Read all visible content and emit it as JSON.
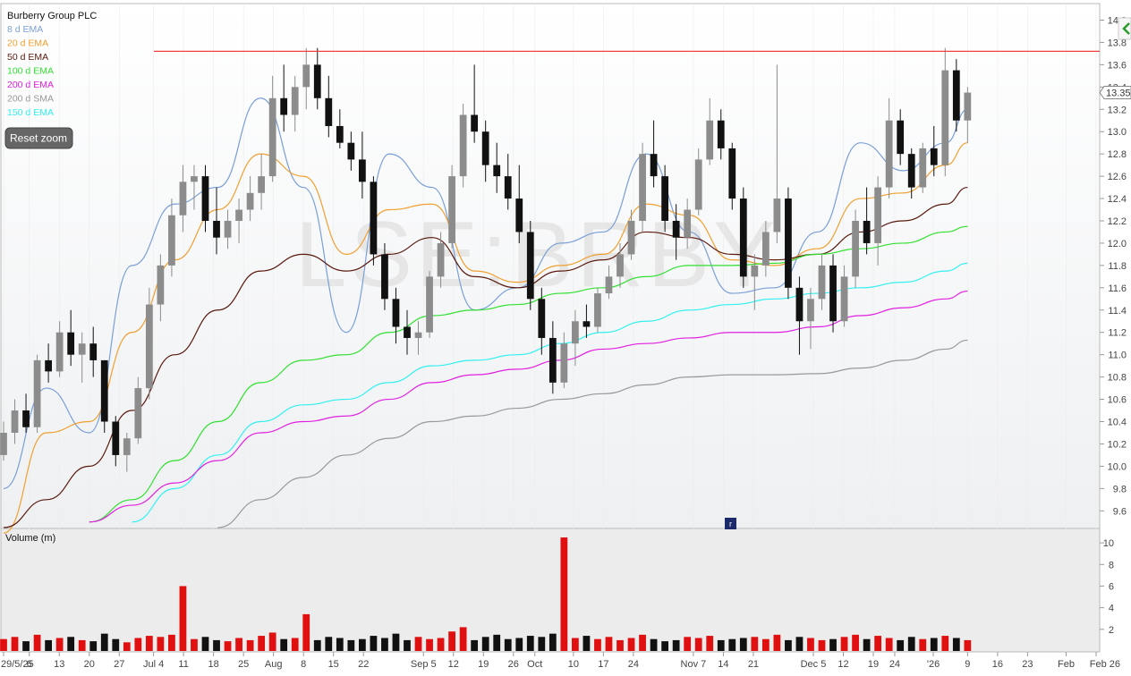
{
  "chart_data": {
    "type": "candlestick",
    "title": "Burberry Group PLC",
    "watermark": "LSE:BRBY",
    "last_price_label": "13.35",
    "resistance_level": 13.72,
    "price_axis": {
      "ylim": [
        9.45,
        14.1
      ],
      "ticks": [
        "9.6",
        "9.8",
        "10.0",
        "10.2",
        "10.4",
        "10.6",
        "10.8",
        "11.0",
        "11.2",
        "11.4",
        "11.6",
        "11.8",
        "12.0",
        "12.2",
        "12.4",
        "12.6",
        "12.8",
        "13.0",
        "13.2",
        "13.4",
        "13.6",
        "13.8",
        "14.0"
      ]
    },
    "volume_axis": {
      "label": "Volume (m)",
      "ylim": [
        0,
        11
      ],
      "ticks": [
        "2",
        "4",
        "6",
        "8",
        "10"
      ]
    },
    "x_axis_labels": [
      "29/5/25",
      "6",
      "13",
      "20",
      "27",
      "Jul 4",
      "11",
      "18",
      "25",
      "Aug",
      "8",
      "15",
      "22",
      "Sep 5",
      "12",
      "19",
      "26",
      "Oct",
      "10",
      "17",
      "24",
      "Nov 7",
      "14",
      "21",
      "Dec 5",
      "12",
      "19",
      "24",
      "'26",
      "9",
      "16",
      "23",
      "Feb",
      "Feb 26"
    ],
    "x_axis_label_days": [
      0,
      6,
      13,
      20,
      27,
      35,
      42,
      49,
      56,
      63,
      70,
      77,
      84,
      98,
      105,
      112,
      119,
      124,
      133,
      140,
      147,
      161,
      168,
      175,
      189,
      196,
      203,
      208,
      217,
      225,
      232,
      239,
      248,
      255
    ],
    "legend": [
      {
        "label": "8 d EMA",
        "color": "#7a9fd6"
      },
      {
        "label": "20 d EMA",
        "color": "#f0a030"
      },
      {
        "label": "50 d EMA",
        "color": "#5a1a0e"
      },
      {
        "label": "100 d EMA",
        "color": "#33e033"
      },
      {
        "label": "200 d EMA",
        "color": "#e020e0"
      },
      {
        "label": "200 d SMA",
        "color": "#999999"
      },
      {
        "label": "150 d EMA",
        "color": "#33f0f0"
      }
    ],
    "colors": {
      "up_candle": "#8c8c8c",
      "down_candle": "#111111",
      "resistance": "#f04040",
      "volume_up": "#e01010",
      "volume_down": "#111111",
      "volume_spike": "#e01010"
    },
    "series": [
      {
        "name": "8 d EMA",
        "x": [
          0,
          10,
          20,
          30,
          40,
          50,
          60,
          70,
          80,
          90,
          100,
          110,
          120,
          130,
          140,
          150,
          160,
          170,
          180,
          190,
          200,
          210,
          220,
          225
        ],
        "values": [
          9.8,
          10.7,
          10.3,
          11.8,
          12.35,
          12.5,
          13.3,
          12.5,
          11.2,
          12.8,
          12.5,
          11.4,
          11.6,
          12.0,
          12.1,
          12.8,
          12.1,
          11.55,
          11.6,
          12.1,
          12.9,
          12.65,
          12.9,
          13.2
        ]
      },
      {
        "name": "20 d EMA",
        "x": [
          0,
          10,
          20,
          30,
          40,
          50,
          60,
          70,
          80,
          90,
          100,
          110,
          120,
          130,
          140,
          150,
          160,
          170,
          180,
          190,
          200,
          210,
          220,
          225
        ],
        "values": [
          9.4,
          10.3,
          10.4,
          11.2,
          11.85,
          12.3,
          12.8,
          12.6,
          11.9,
          12.3,
          12.35,
          11.75,
          11.65,
          11.8,
          11.9,
          12.35,
          12.25,
          11.85,
          11.8,
          11.95,
          12.4,
          12.45,
          12.7,
          12.9
        ]
      },
      {
        "name": "50 d EMA",
        "x": [
          0,
          10,
          20,
          30,
          40,
          50,
          60,
          70,
          80,
          90,
          100,
          110,
          120,
          130,
          140,
          150,
          160,
          170,
          180,
          190,
          200,
          210,
          220,
          225
        ],
        "values": [
          9.45,
          9.7,
          10.0,
          10.5,
          11.0,
          11.4,
          11.75,
          11.9,
          11.75,
          11.9,
          12.05,
          11.7,
          11.6,
          11.75,
          11.85,
          12.1,
          12.05,
          11.9,
          11.85,
          11.9,
          12.1,
          12.2,
          12.35,
          12.5
        ]
      },
      {
        "name": "100 d EMA",
        "x": [
          20,
          30,
          40,
          50,
          60,
          70,
          80,
          90,
          100,
          110,
          120,
          130,
          140,
          150,
          160,
          170,
          180,
          190,
          200,
          210,
          220,
          225
        ],
        "values": [
          9.5,
          9.7,
          10.05,
          10.4,
          10.75,
          10.95,
          11.0,
          11.2,
          11.35,
          11.4,
          11.45,
          11.55,
          11.6,
          11.7,
          11.8,
          11.8,
          11.82,
          11.9,
          11.95,
          12.0,
          12.1,
          12.15
        ]
      },
      {
        "name": "150 d EMA",
        "x": [
          30,
          40,
          50,
          60,
          70,
          80,
          90,
          100,
          110,
          120,
          130,
          140,
          150,
          160,
          170,
          180,
          190,
          200,
          210,
          220,
          225
        ],
        "values": [
          9.5,
          9.8,
          10.1,
          10.4,
          10.55,
          10.6,
          10.75,
          10.9,
          10.95,
          11.0,
          11.1,
          11.2,
          11.3,
          11.4,
          11.45,
          11.5,
          11.55,
          11.6,
          11.65,
          11.75,
          11.82
        ]
      },
      {
        "name": "200 d EMA",
        "x": [
          20,
          30,
          40,
          50,
          60,
          70,
          80,
          90,
          100,
          110,
          120,
          130,
          140,
          150,
          160,
          170,
          180,
          190,
          200,
          210,
          220,
          225
        ],
        "values": [
          9.5,
          9.65,
          9.85,
          10.05,
          10.3,
          10.4,
          10.45,
          10.6,
          10.75,
          10.82,
          10.87,
          10.95,
          11.05,
          11.1,
          11.15,
          11.2,
          11.2,
          11.25,
          11.35,
          11.42,
          11.5,
          11.57
        ]
      },
      {
        "name": "200 d SMA",
        "x": [
          50,
          60,
          70,
          80,
          90,
          100,
          110,
          120,
          130,
          140,
          150,
          160,
          170,
          180,
          190,
          200,
          210,
          220,
          225
        ],
        "values": [
          9.45,
          9.7,
          9.9,
          10.1,
          10.25,
          10.4,
          10.45,
          10.52,
          10.6,
          10.65,
          10.73,
          10.8,
          10.82,
          10.82,
          10.83,
          10.88,
          10.95,
          11.05,
          11.13
        ]
      }
    ],
    "candles_ohlc": [
      [
        10.1,
        10.4,
        10.05,
        10.3,
        1.1
      ],
      [
        10.3,
        10.6,
        10.2,
        10.5,
        1.3
      ],
      [
        10.5,
        10.65,
        10.3,
        10.35,
        0.9
      ],
      [
        10.35,
        11.0,
        10.3,
        10.95,
        1.5
      ],
      [
        10.95,
        11.1,
        10.75,
        10.85,
        1.0
      ],
      [
        10.85,
        11.3,
        10.8,
        11.2,
        1.2
      ],
      [
        11.2,
        11.4,
        10.9,
        11.0,
        1.3
      ],
      [
        11.0,
        11.2,
        10.75,
        11.1,
        1.0
      ],
      [
        11.1,
        11.25,
        10.8,
        10.95,
        0.9
      ],
      [
        10.95,
        10.95,
        10.3,
        10.4,
        1.6
      ],
      [
        10.4,
        10.45,
        10.0,
        10.1,
        1.1
      ],
      [
        10.1,
        10.3,
        9.95,
        10.25,
        0.8
      ],
      [
        10.25,
        10.8,
        10.2,
        10.7,
        1.2
      ],
      [
        10.7,
        11.6,
        10.6,
        11.45,
        1.4
      ],
      [
        11.45,
        11.9,
        11.3,
        11.8,
        1.3
      ],
      [
        11.8,
        12.4,
        11.7,
        12.25,
        1.5
      ],
      [
        12.25,
        12.7,
        12.1,
        12.55,
        6.0
      ],
      [
        12.55,
        12.7,
        12.3,
        12.6,
        1.1
      ],
      [
        12.6,
        12.7,
        12.1,
        12.2,
        1.3
      ],
      [
        12.2,
        12.5,
        11.9,
        12.05,
        1.0
      ],
      [
        12.05,
        12.3,
        11.95,
        12.2,
        0.9
      ],
      [
        12.2,
        12.4,
        12.0,
        12.3,
        1.2
      ],
      [
        12.3,
        12.6,
        12.2,
        12.45,
        1.0
      ],
      [
        12.45,
        12.8,
        12.3,
        12.6,
        1.4
      ],
      [
        12.6,
        13.5,
        12.55,
        13.3,
        1.7
      ],
      [
        13.3,
        13.6,
        13.0,
        13.15,
        1.1
      ],
      [
        13.15,
        13.5,
        13.0,
        13.4,
        1.2
      ],
      [
        13.4,
        13.75,
        13.2,
        13.6,
        3.4
      ],
      [
        13.6,
        13.75,
        13.2,
        13.3,
        1.0
      ],
      [
        13.3,
        13.5,
        12.95,
        13.05,
        1.3
      ],
      [
        13.05,
        13.2,
        12.85,
        12.9,
        1.2
      ],
      [
        12.9,
        13.0,
        12.65,
        12.75,
        1.0
      ],
      [
        12.75,
        13.0,
        12.4,
        12.55,
        1.1
      ],
      [
        12.55,
        12.6,
        11.8,
        11.9,
        1.4
      ],
      [
        11.9,
        12.0,
        11.4,
        11.5,
        1.2
      ],
      [
        11.5,
        11.6,
        11.1,
        11.25,
        1.6
      ],
      [
        11.25,
        11.4,
        11.0,
        11.15,
        1.0
      ],
      [
        11.15,
        11.3,
        11.0,
        11.2,
        1.3
      ],
      [
        11.2,
        11.75,
        11.15,
        11.7,
        1.1
      ],
      [
        11.7,
        12.1,
        11.6,
        12.0,
        1.2
      ],
      [
        12.0,
        12.7,
        11.95,
        12.6,
        1.8
      ],
      [
        12.6,
        13.25,
        12.5,
        13.15,
        2.2
      ],
      [
        13.15,
        13.6,
        12.9,
        13.0,
        1.0
      ],
      [
        13.0,
        13.1,
        12.55,
        12.7,
        1.3
      ],
      [
        12.7,
        12.9,
        12.45,
        12.6,
        1.5
      ],
      [
        12.6,
        12.8,
        12.3,
        12.4,
        1.1
      ],
      [
        12.4,
        12.7,
        12.0,
        12.1,
        1.2
      ],
      [
        12.1,
        12.2,
        11.4,
        11.5,
        1.4
      ],
      [
        11.5,
        11.6,
        11.0,
        11.15,
        1.3
      ],
      [
        11.15,
        11.3,
        10.65,
        10.75,
        1.6
      ],
      [
        10.75,
        11.2,
        10.7,
        11.1,
        10.5
      ],
      [
        11.1,
        11.4,
        10.9,
        11.3,
        1.2
      ],
      [
        11.3,
        11.45,
        11.15,
        11.25,
        1.4
      ],
      [
        11.25,
        11.6,
        11.2,
        11.55,
        1.1
      ],
      [
        11.55,
        11.8,
        11.5,
        11.7,
        1.3
      ],
      [
        11.7,
        12.0,
        11.6,
        11.9,
        1.0
      ],
      [
        11.9,
        12.3,
        11.85,
        12.2,
        1.2
      ],
      [
        12.2,
        12.9,
        12.1,
        12.8,
        1.5
      ],
      [
        12.8,
        13.1,
        12.5,
        12.6,
        1.1
      ],
      [
        12.6,
        12.7,
        12.1,
        12.2,
        0.9
      ],
      [
        12.2,
        12.35,
        11.85,
        12.05,
        1.0
      ],
      [
        12.05,
        12.4,
        11.95,
        12.3,
        1.3
      ],
      [
        12.3,
        12.85,
        12.25,
        12.75,
        1.2
      ],
      [
        12.75,
        13.3,
        12.7,
        13.1,
        1.4
      ],
      [
        13.1,
        13.2,
        12.75,
        12.85,
        1.0
      ],
      [
        12.85,
        12.9,
        12.3,
        12.4,
        1.1
      ],
      [
        12.4,
        12.5,
        11.6,
        11.7,
        1.2
      ],
      [
        11.7,
        11.9,
        11.4,
        11.8,
        1.3
      ],
      [
        11.8,
        12.2,
        11.7,
        12.1,
        1.1
      ],
      [
        12.1,
        13.6,
        12.0,
        12.4,
        1.5
      ],
      [
        12.4,
        12.5,
        11.5,
        11.6,
        1.0
      ],
      [
        11.6,
        11.7,
        11.0,
        11.3,
        1.3
      ],
      [
        11.3,
        11.6,
        11.05,
        11.5,
        1.2
      ],
      [
        11.5,
        11.9,
        11.4,
        11.8,
        1.0
      ],
      [
        11.8,
        11.9,
        11.2,
        11.3,
        1.1
      ],
      [
        11.3,
        11.8,
        11.25,
        11.7,
        1.3
      ],
      [
        11.7,
        12.3,
        11.6,
        12.2,
        1.5
      ],
      [
        12.2,
        12.5,
        11.9,
        12.0,
        1.1
      ],
      [
        12.0,
        12.6,
        11.8,
        12.5,
        1.4
      ],
      [
        12.5,
        13.3,
        12.4,
        13.1,
        1.2
      ],
      [
        13.1,
        13.2,
        12.7,
        12.8,
        1.0
      ],
      [
        12.8,
        12.85,
        12.4,
        12.5,
        1.3
      ],
      [
        12.5,
        12.9,
        12.45,
        12.85,
        1.1
      ],
      [
        12.85,
        13.05,
        12.6,
        12.7,
        1.2
      ],
      [
        12.7,
        13.75,
        12.6,
        13.55,
        1.4
      ],
      [
        13.55,
        13.65,
        13.0,
        13.1,
        1.2
      ],
      [
        13.1,
        13.4,
        12.9,
        13.35,
        1.0
      ]
    ]
  },
  "ui": {
    "reset_zoom_label": "Reset zoom",
    "marker_label": "r"
  }
}
